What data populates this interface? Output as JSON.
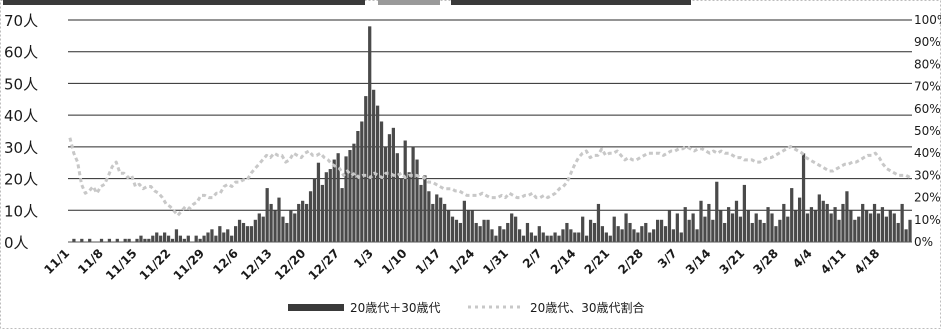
{
  "chart_data": {
    "type": "bar",
    "y_axis_left": {
      "ticks": [
        "0人",
        "10人",
        "20人",
        "30人",
        "40人",
        "50人",
        "60人",
        "70人"
      ],
      "ylim": [
        0,
        70
      ]
    },
    "y_axis_right": {
      "ticks": [
        "0%",
        "10%",
        "20%",
        "30%",
        "40%",
        "50%",
        "60%",
        "70%",
        "80%",
        "90%",
        "100%"
      ],
      "ylim": [
        0,
        100
      ]
    },
    "x_tick_labels": [
      "11/1",
      "11/8",
      "11/15",
      "11/22",
      "11/29",
      "12/6",
      "12/13",
      "12/20",
      "12/27",
      "1/3",
      "1/10",
      "1/17",
      "1/24",
      "1/31",
      "2/7",
      "2/14",
      "2/21",
      "2/28",
      "3/7",
      "3/14",
      "3/21",
      "3/28",
      "4/4",
      "4/11",
      "4/18"
    ],
    "grid": true,
    "legend": {
      "placement": "bottom"
    },
    "colors": {
      "bar": "#4a4a4a",
      "line": "#c8c8c8",
      "grid": "#2a2a2a"
    },
    "series": [
      {
        "name": "20歳代＋30歳代",
        "type": "bar",
        "axis": "left",
        "values": [
          0,
          1,
          0,
          1,
          0,
          1,
          0,
          0,
          1,
          0,
          1,
          0,
          1,
          0,
          1,
          1,
          0,
          1,
          2,
          1,
          1,
          2,
          3,
          2,
          3,
          2,
          1,
          4,
          2,
          1,
          2,
          0,
          2,
          1,
          2,
          3,
          4,
          2,
          5,
          3,
          4,
          2,
          5,
          7,
          6,
          5,
          5,
          7,
          9,
          8,
          17,
          12,
          10,
          14,
          8,
          6,
          10,
          9,
          12,
          13,
          12,
          16,
          20,
          25,
          18,
          22,
          23,
          26,
          28,
          17,
          27,
          29,
          31,
          35,
          38,
          46,
          68,
          48,
          43,
          38,
          30,
          34,
          36,
          28,
          20,
          32,
          22,
          30,
          26,
          18,
          21,
          16,
          12,
          15,
          14,
          12,
          10,
          8,
          7,
          6,
          13,
          10,
          10,
          6,
          5,
          7,
          7,
          4,
          2,
          5,
          4,
          6,
          9,
          8,
          4,
          2,
          6,
          3,
          2,
          5,
          3,
          2,
          2,
          3,
          2,
          4,
          6,
          4,
          3,
          3,
          8,
          2,
          7,
          6,
          12,
          5,
          3,
          2,
          8,
          5,
          4,
          9,
          6,
          4,
          3,
          5,
          6,
          3,
          4,
          7,
          7,
          5,
          10,
          4,
          9,
          3,
          11,
          7,
          9,
          4,
          13,
          8,
          12,
          7,
          19,
          10,
          6,
          11,
          9,
          13,
          8,
          18,
          10,
          6,
          9,
          7,
          6,
          11,
          9,
          5,
          7,
          12,
          8,
          17,
          10,
          14,
          28,
          9,
          11,
          10,
          15,
          13,
          12,
          9,
          11,
          7,
          12,
          16,
          10,
          7,
          8,
          12,
          10,
          9,
          12,
          9,
          11,
          8,
          10,
          9,
          6,
          12,
          4,
          7
        ]
      },
      {
        "name": "20歳代、30歳代割合",
        "type": "line",
        "axis": "right",
        "values": [
          47,
          40,
          36,
          26,
          22,
          23,
          25,
          22,
          25,
          26,
          30,
          34,
          36,
          31,
          31,
          29,
          30,
          25,
          26,
          24,
          25,
          25,
          23,
          22,
          20,
          17,
          16,
          14,
          12,
          14,
          16,
          15,
          17,
          18,
          21,
          21,
          20,
          20,
          22,
          22,
          25,
          26,
          25,
          27,
          27,
          28,
          28,
          31,
          33,
          35,
          37,
          39,
          38,
          40,
          39,
          39,
          36,
          37,
          40,
          39,
          38,
          40,
          41,
          39,
          39,
          40,
          38,
          37,
          35,
          34,
          33,
          30,
          32,
          30,
          31,
          29,
          30,
          30,
          29,
          31,
          30,
          29,
          31,
          31,
          30,
          30,
          31,
          29,
          30,
          30,
          30,
          29,
          29,
          27,
          27,
          26,
          25,
          24,
          24,
          24,
          23,
          23,
          22,
          21,
          21,
          21,
          21,
          22,
          21,
          20,
          20,
          20,
          21,
          20,
          22,
          21,
          20,
          20,
          21,
          21,
          22,
          20,
          20,
          21,
          20,
          21,
          22,
          24,
          25,
          27,
          31,
          35,
          38,
          40,
          41,
          38,
          39,
          39,
          42,
          39,
          40,
          40,
          41,
          39,
          37,
          38,
          37,
          37,
          38,
          39,
          40,
          40,
          40,
          40,
          39,
          40,
          41,
          41,
          42,
          42,
          43,
          42,
          41,
          42,
          42,
          41,
          40,
          41,
          40,
          41,
          40,
          40,
          39,
          38,
          38,
          37,
          37,
          37,
          36,
          36,
          37,
          38,
          38,
          39,
          40,
          41,
          42,
          43,
          42,
          41,
          40,
          38,
          37,
          36,
          35,
          34,
          33,
          32,
          32,
          33,
          34,
          35,
          35,
          36,
          36,
          37,
          38,
          39,
          39,
          40,
          38,
          35,
          33,
          32,
          31,
          30,
          30,
          30,
          29
        ]
      }
    ]
  }
}
